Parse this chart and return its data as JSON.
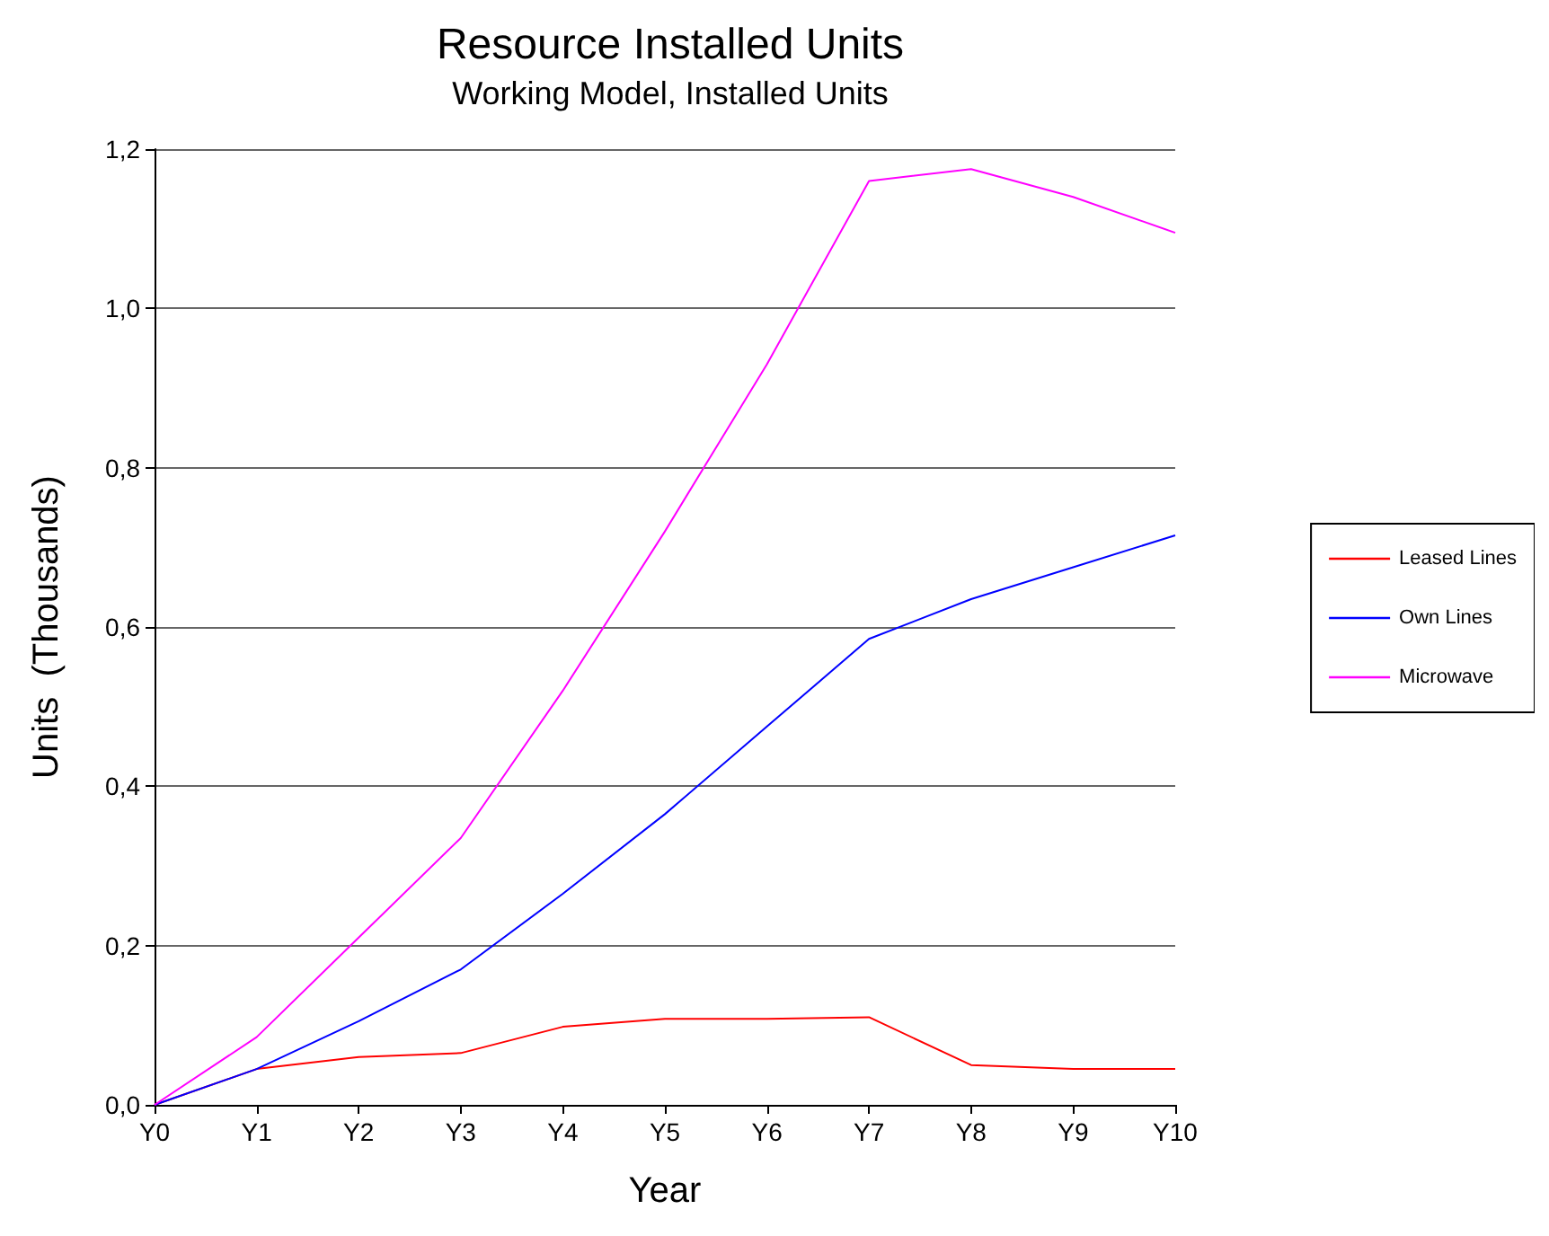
{
  "chart_data": {
    "type": "line",
    "title": "Resource Installed Units",
    "subtitle": "Working Model, Installed Units",
    "xlabel": "Year",
    "ylabel": "Units  (Thousands)",
    "categories": [
      "Y0",
      "Y1",
      "Y2",
      "Y3",
      "Y4",
      "Y5",
      "Y6",
      "Y7",
      "Y8",
      "Y9",
      "Y10"
    ],
    "series": [
      {
        "name": "Leased Lines",
        "color": "#ff0000",
        "values": [
          0,
          0.045,
          0.06,
          0.065,
          0.098,
          0.108,
          0.108,
          0.11,
          0.05,
          0.045,
          0.045
        ]
      },
      {
        "name": "Own Lines",
        "color": "#0000ff",
        "values": [
          0,
          0.045,
          0.105,
          0.17,
          0.265,
          0.365,
          0.475,
          0.585,
          0.635,
          0.675,
          0.715
        ]
      },
      {
        "name": "Microwave",
        "color": "#ff00ff",
        "values": [
          0,
          0.085,
          0.21,
          0.335,
          0.52,
          0.72,
          0.93,
          1.16,
          1.175,
          1.14,
          1.095
        ]
      }
    ],
    "ylim": [
      0,
      1.2
    ],
    "yticks": [
      {
        "value": 0,
        "label": "0,0"
      },
      {
        "value": 0.2,
        "label": "0,2"
      },
      {
        "value": 0.4,
        "label": "0,4"
      },
      {
        "value": 0.6,
        "label": "0,6"
      },
      {
        "value": 0.8,
        "label": "0,8"
      },
      {
        "value": 1,
        "label": "1,0"
      },
      {
        "value": 1.2,
        "label": "1,2"
      }
    ],
    "grid": "y",
    "legend": "right",
    "marker": "none",
    "line_style": "solid"
  }
}
